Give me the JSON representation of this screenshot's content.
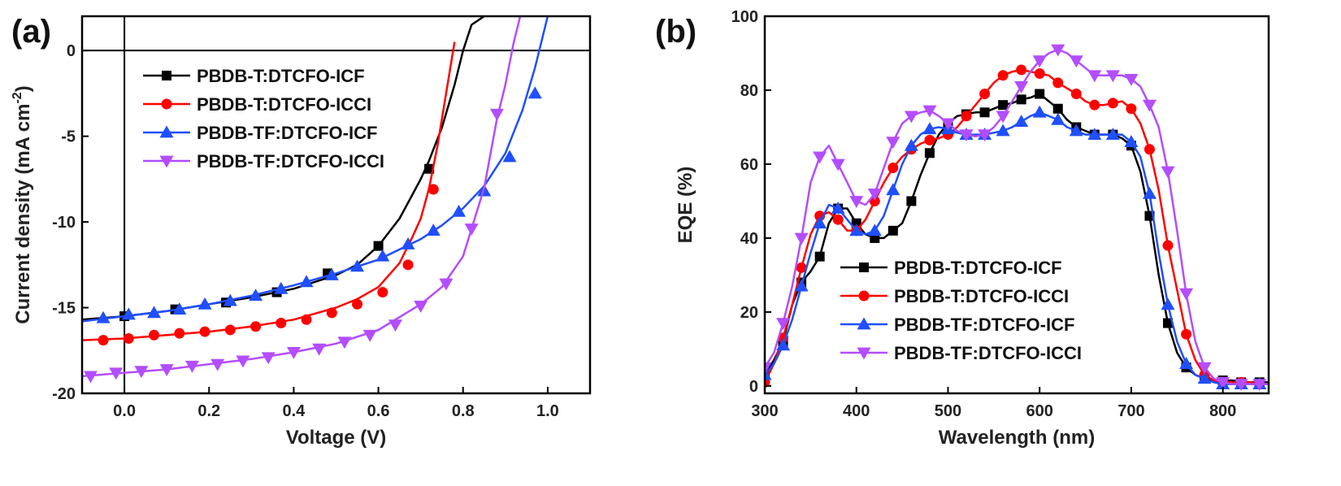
{
  "chart_data": [
    {
      "type": "line",
      "panel_label": "(a)",
      "xlabel": "Voltage (V)",
      "ylabel_main": "Current density (mA cm",
      "ylabel_sup": "-2",
      "ylabel_close": ")",
      "xlim": [
        -0.1,
        1.1
      ],
      "ylim": [
        -20,
        2
      ],
      "xticks": [
        0.0,
        0.2,
        0.4,
        0.6,
        0.8,
        1.0
      ],
      "xtick_labels": [
        "0.0",
        "0.2",
        "0.4",
        "0.6",
        "0.8",
        "1.0"
      ],
      "yticks": [
        0,
        -5,
        -10,
        -15,
        -20
      ],
      "ytick_labels": [
        "0",
        "-5",
        "-10",
        "-15",
        "-20"
      ],
      "legend_position": "top-left",
      "series": [
        {
          "name": "PBDB-T:DTCFO-ICF",
          "color": "#000000",
          "marker": "square",
          "x": [
            -0.1,
            0.0,
            0.1,
            0.2,
            0.3,
            0.4,
            0.5,
            0.55,
            0.6,
            0.65,
            0.7,
            0.72,
            0.75,
            0.78,
            0.8,
            0.82,
            0.85
          ],
          "y": [
            -15.7,
            -15.5,
            -15.2,
            -14.8,
            -14.4,
            -13.9,
            -13.1,
            -12.5,
            -11.4,
            -9.8,
            -7.5,
            -6.4,
            -4.5,
            -2.0,
            0.0,
            1.5,
            2.0
          ],
          "marker_x": [
            0.0,
            0.12,
            0.24,
            0.36,
            0.48,
            0.6,
            0.72
          ],
          "marker_y": [
            -15.5,
            -15.1,
            -14.7,
            -14.1,
            -13.0,
            -11.4,
            -6.9
          ]
        },
        {
          "name": "PBDB-T:DTCFO-ICCI",
          "color": "#ff0000",
          "marker": "circle",
          "x": [
            -0.1,
            0.0,
            0.1,
            0.2,
            0.3,
            0.4,
            0.5,
            0.55,
            0.6,
            0.65,
            0.68,
            0.7,
            0.72,
            0.74,
            0.76,
            0.78
          ],
          "y": [
            -16.9,
            -16.8,
            -16.6,
            -16.4,
            -16.1,
            -15.7,
            -15.0,
            -14.5,
            -13.8,
            -12.4,
            -10.9,
            -9.8,
            -8.0,
            -5.5,
            -2.5,
            0.5
          ],
          "marker_x": [
            -0.05,
            0.01,
            0.07,
            0.13,
            0.19,
            0.25,
            0.31,
            0.37,
            0.43,
            0.49,
            0.55,
            0.61,
            0.67,
            0.73
          ],
          "marker_y": [
            -16.9,
            -16.8,
            -16.6,
            -16.5,
            -16.4,
            -16.3,
            -16.1,
            -15.9,
            -15.7,
            -15.3,
            -14.8,
            -14.1,
            -12.5,
            -8.1
          ]
        },
        {
          "name": "PBDB-TF:DTCFO-ICF",
          "color": "#1f4fff",
          "marker": "triangle-up",
          "x": [
            -0.1,
            0.0,
            0.1,
            0.2,
            0.3,
            0.4,
            0.5,
            0.6,
            0.7,
            0.75,
            0.8,
            0.85,
            0.9,
            0.94,
            0.97,
            1.0,
            1.02
          ],
          "y": [
            -15.8,
            -15.5,
            -15.2,
            -14.8,
            -14.3,
            -13.7,
            -13.0,
            -12.2,
            -11.0,
            -10.2,
            -9.2,
            -7.9,
            -6.0,
            -3.5,
            -1.0,
            2.0,
            3.0
          ],
          "marker_x": [
            -0.05,
            0.01,
            0.07,
            0.13,
            0.19,
            0.25,
            0.31,
            0.37,
            0.43,
            0.49,
            0.55,
            0.61,
            0.67,
            0.73,
            0.79,
            0.85,
            0.91,
            0.97
          ],
          "marker_y": [
            -15.6,
            -15.4,
            -15.3,
            -15.1,
            -14.8,
            -14.6,
            -14.3,
            -13.9,
            -13.5,
            -13.1,
            -12.6,
            -12.0,
            -11.3,
            -10.5,
            -9.4,
            -8.2,
            -6.2,
            -2.5
          ]
        },
        {
          "name": "PBDB-TF:DTCFO-ICCI",
          "color": "#b34dff",
          "marker": "triangle-down",
          "x": [
            -0.1,
            0.0,
            0.1,
            0.2,
            0.3,
            0.4,
            0.5,
            0.6,
            0.7,
            0.75,
            0.8,
            0.85,
            0.88,
            0.9,
            0.92,
            0.935
          ],
          "y": [
            -19.0,
            -18.8,
            -18.6,
            -18.3,
            -18.0,
            -17.6,
            -17.1,
            -16.3,
            -14.8,
            -13.8,
            -12.0,
            -8.0,
            -4.0,
            -2.0,
            0.5,
            2.0
          ],
          "marker_x": [
            -0.08,
            -0.02,
            0.04,
            0.1,
            0.16,
            0.22,
            0.28,
            0.34,
            0.4,
            0.46,
            0.52,
            0.58,
            0.64,
            0.7,
            0.76,
            0.82,
            0.88
          ],
          "marker_y": [
            -19.0,
            -18.8,
            -18.7,
            -18.6,
            -18.4,
            -18.3,
            -18.1,
            -17.9,
            -17.6,
            -17.4,
            -17.0,
            -16.6,
            -16.0,
            -14.9,
            -13.6,
            -10.4,
            -3.7
          ]
        }
      ]
    },
    {
      "type": "line",
      "panel_label": "(b)",
      "xlabel": "Wavelength (nm)",
      "ylabel_main": "EQE (%)",
      "xlim": [
        300,
        850
      ],
      "ylim": [
        -2,
        100
      ],
      "xticks": [
        300,
        400,
        500,
        600,
        700,
        800
      ],
      "xtick_labels": [
        "300",
        "400",
        "500",
        "600",
        "700",
        "800"
      ],
      "yticks": [
        0,
        20,
        40,
        60,
        80,
        100
      ],
      "ytick_labels": [
        "0",
        "20",
        "40",
        "60",
        "80",
        "100"
      ],
      "legend_position": "bottom-center",
      "series": [
        {
          "name": "PBDB-T:DTCFO-ICF",
          "color": "#000000",
          "marker": "square",
          "x": [
            300,
            310,
            320,
            330,
            340,
            350,
            360,
            370,
            380,
            390,
            400,
            410,
            420,
            430,
            440,
            450,
            460,
            470,
            480,
            490,
            500,
            510,
            520,
            530,
            540,
            550,
            560,
            570,
            580,
            590,
            600,
            610,
            620,
            630,
            640,
            650,
            660,
            670,
            680,
            690,
            700,
            710,
            720,
            730,
            740,
            750,
            760,
            770,
            780,
            790,
            800,
            810,
            820,
            830,
            840,
            850
          ],
          "y": [
            3,
            7,
            12,
            22,
            28,
            31,
            35,
            44,
            48,
            48,
            44,
            41,
            40,
            40,
            42,
            44,
            50,
            57,
            63,
            68,
            71,
            73,
            73.5,
            74,
            74,
            75,
            76,
            76.5,
            77.5,
            78,
            79,
            77,
            75,
            72,
            70,
            69,
            68,
            68,
            68,
            67,
            65,
            58,
            46,
            30,
            17,
            9,
            5,
            3,
            2,
            1.5,
            1.5,
            1.5,
            1,
            1,
            1,
            1
          ]
        },
        {
          "name": "PBDB-T:DTCFO-ICCI",
          "color": "#ff0000",
          "marker": "circle",
          "x": [
            300,
            310,
            320,
            330,
            340,
            350,
            360,
            370,
            380,
            390,
            400,
            410,
            420,
            430,
            440,
            450,
            460,
            470,
            480,
            490,
            500,
            510,
            520,
            530,
            540,
            550,
            560,
            570,
            580,
            590,
            600,
            610,
            620,
            630,
            640,
            650,
            660,
            670,
            680,
            690,
            700,
            710,
            720,
            730,
            740,
            750,
            760,
            770,
            780,
            790,
            800,
            810,
            820,
            830,
            840,
            850
          ],
          "y": [
            1,
            6,
            13,
            22,
            32,
            41,
            46,
            47,
            45,
            42,
            42,
            45,
            50,
            55,
            59,
            62,
            64,
            65.5,
            66.5,
            67,
            68,
            70,
            73,
            76,
            79,
            82,
            84,
            85,
            85.5,
            85,
            84.5,
            84,
            82,
            80.5,
            79,
            77,
            76,
            76,
            76.5,
            77,
            75,
            71,
            64,
            53,
            38,
            26,
            14,
            7,
            3,
            1.5,
            1,
            1,
            1,
            1,
            0.5,
            0.5
          ]
        },
        {
          "name": "PBDB-TF:DTCFO-ICF",
          "color": "#1f4fff",
          "marker": "triangle-up",
          "x": [
            300,
            310,
            320,
            330,
            340,
            350,
            360,
            370,
            380,
            390,
            400,
            410,
            420,
            430,
            440,
            450,
            460,
            470,
            480,
            490,
            500,
            510,
            520,
            530,
            540,
            550,
            560,
            570,
            580,
            590,
            600,
            610,
            620,
            630,
            640,
            650,
            660,
            670,
            680,
            690,
            700,
            710,
            720,
            730,
            740,
            750,
            760,
            770,
            780,
            790,
            800,
            810,
            820,
            830,
            840,
            850
          ],
          "y": [
            3,
            6,
            11,
            18,
            27,
            36,
            44,
            49,
            48,
            45,
            42,
            41,
            42,
            46,
            53,
            60,
            65,
            68,
            69.5,
            70,
            69.5,
            68.5,
            68,
            68,
            68,
            68.5,
            69,
            70,
            71.5,
            73,
            74,
            73,
            72,
            70,
            69,
            68,
            68,
            68,
            68,
            68,
            66,
            62,
            52,
            36,
            22,
            12,
            6,
            3,
            2,
            1,
            0.5,
            0.5,
            0.5,
            0.5,
            0.5,
            0.5
          ]
        },
        {
          "name": "PBDB-TF:DTCFO-ICCI",
          "color": "#b34dff",
          "marker": "triangle-down",
          "x": [
            300,
            310,
            320,
            330,
            340,
            350,
            360,
            370,
            380,
            390,
            400,
            410,
            420,
            430,
            440,
            450,
            460,
            470,
            480,
            490,
            500,
            510,
            520,
            530,
            540,
            550,
            560,
            570,
            580,
            590,
            600,
            610,
            620,
            630,
            640,
            650,
            660,
            670,
            680,
            690,
            700,
            710,
            720,
            730,
            740,
            750,
            760,
            770,
            780,
            790,
            800,
            810,
            820,
            830,
            840,
            850
          ],
          "y": [
            5,
            9,
            17,
            27,
            40,
            55,
            62,
            65,
            60,
            55,
            50,
            49,
            52,
            59,
            66,
            71,
            73,
            74,
            74.5,
            73,
            71,
            69,
            68,
            67.5,
            68,
            70,
            73,
            77,
            81,
            85,
            88,
            90,
            91,
            90,
            88,
            86,
            84,
            84,
            84,
            84,
            83,
            81,
            76,
            70,
            58,
            42,
            25,
            12,
            5,
            2,
            1,
            0.5,
            0.5,
            0.5,
            0.5,
            0.5
          ]
        }
      ]
    }
  ]
}
